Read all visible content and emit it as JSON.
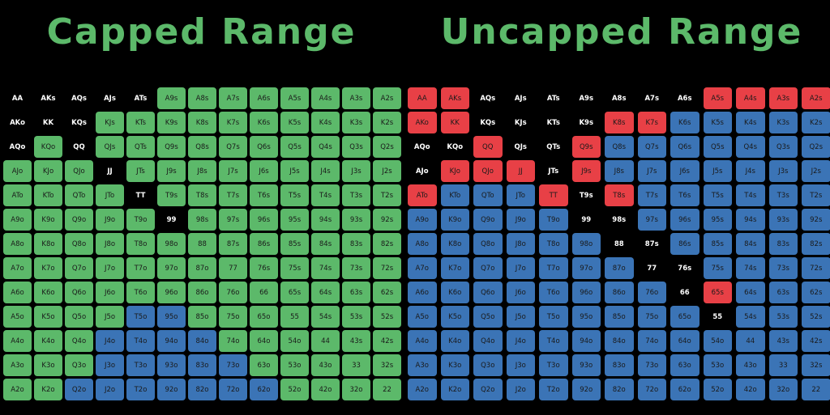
{
  "colors": {
    "background": "#000000",
    "title": "#5cb96a",
    "green": "#5cb96a",
    "blue": "#3b74b6",
    "red": "#e84046",
    "text_on_color": "#1a1a1a",
    "text_on_black": "#ffffff"
  },
  "left_panel": {
    "title": "Capped Range",
    "grid": [
      [
        "AA",
        "AKs",
        "AQs",
        "AJs",
        "ATs",
        "A9s",
        "A8s",
        "A7s",
        "A6s",
        "A5s",
        "A4s",
        "A3s",
        "A2s"
      ],
      [
        "AKo",
        "KK",
        "KQs",
        "KJs",
        "KTs",
        "K9s",
        "K8s",
        "K7s",
        "K6s",
        "K5s",
        "K4s",
        "K3s",
        "K2s"
      ],
      [
        "AQo",
        "KQo",
        "QQ",
        "QJs",
        "QTs",
        "Q9s",
        "Q8s",
        "Q7s",
        "Q6s",
        "Q5s",
        "Q4s",
        "Q3s",
        "Q2s"
      ],
      [
        "AJo",
        "KJo",
        "QJo",
        "JJ",
        "JTs",
        "J9s",
        "J8s",
        "J7s",
        "J6s",
        "J5s",
        "J4s",
        "J3s",
        "J2s"
      ],
      [
        "ATo",
        "KTo",
        "QTo",
        "JTo",
        "TT",
        "T9s",
        "T8s",
        "T7s",
        "T6s",
        "T5s",
        "T4s",
        "T3s",
        "T2s"
      ],
      [
        "A9o",
        "K9o",
        "Q9o",
        "J9o",
        "T9o",
        "99",
        "98s",
        "97s",
        "96s",
        "95s",
        "94s",
        "93s",
        "92s"
      ],
      [
        "A8o",
        "K8o",
        "Q8o",
        "J8o",
        "T8o",
        "98o",
        "88",
        "87s",
        "86s",
        "85s",
        "84s",
        "83s",
        "82s"
      ],
      [
        "A7o",
        "K7o",
        "Q7o",
        "J7o",
        "T7o",
        "97o",
        "87o",
        "77",
        "76s",
        "75s",
        "74s",
        "73s",
        "72s"
      ],
      [
        "A6o",
        "K6o",
        "Q6o",
        "J6o",
        "T6o",
        "96o",
        "86o",
        "76o",
        "66",
        "65s",
        "64s",
        "63s",
        "62s"
      ],
      [
        "A5o",
        "K5o",
        "Q5o",
        "J5o",
        "T5o",
        "95o",
        "85o",
        "75o",
        "65o",
        "55",
        "54s",
        "53s",
        "52s"
      ],
      [
        "A4o",
        "K4o",
        "Q4o",
        "J4o",
        "T4o",
        "94o",
        "84o",
        "74o",
        "64o",
        "54o",
        "44",
        "43s",
        "42s"
      ],
      [
        "A3o",
        "K3o",
        "Q3o",
        "J3o",
        "T3o",
        "93o",
        "83o",
        "73o",
        "63o",
        "53o",
        "43o",
        "33",
        "32s"
      ],
      [
        "A2o",
        "K2o",
        "Q2o",
        "J2o",
        "T2o",
        "92o",
        "82o",
        "72o",
        "62o",
        "52o",
        "42o",
        "32o",
        "22"
      ]
    ],
    "colors": [
      [
        "n",
        "n",
        "n",
        "n",
        "n",
        "g",
        "g",
        "g",
        "g",
        "g",
        "g",
        "g",
        "g"
      ],
      [
        "n",
        "n",
        "n",
        "g",
        "g",
        "g",
        "g",
        "g",
        "g",
        "g",
        "g",
        "g",
        "g"
      ],
      [
        "n",
        "g",
        "n",
        "g",
        "g",
        "g",
        "g",
        "g",
        "g",
        "g",
        "g",
        "g",
        "g"
      ],
      [
        "g",
        "g",
        "g",
        "n",
        "g",
        "g",
        "g",
        "g",
        "g",
        "g",
        "g",
        "g",
        "g"
      ],
      [
        "g",
        "g",
        "g",
        "g",
        "n",
        "g",
        "g",
        "g",
        "g",
        "g",
        "g",
        "g",
        "g"
      ],
      [
        "g",
        "g",
        "g",
        "g",
        "g",
        "n",
        "g",
        "g",
        "g",
        "g",
        "g",
        "g",
        "g"
      ],
      [
        "g",
        "g",
        "g",
        "g",
        "g",
        "g",
        "g",
        "g",
        "g",
        "g",
        "g",
        "g",
        "g"
      ],
      [
        "g",
        "g",
        "g",
        "g",
        "g",
        "g",
        "g",
        "g",
        "g",
        "g",
        "g",
        "g",
        "g"
      ],
      [
        "g",
        "g",
        "g",
        "g",
        "g",
        "g",
        "g",
        "g",
        "g",
        "g",
        "g",
        "g",
        "g"
      ],
      [
        "g",
        "g",
        "g",
        "g",
        "b",
        "b",
        "g",
        "g",
        "g",
        "g",
        "g",
        "g",
        "g"
      ],
      [
        "g",
        "g",
        "g",
        "b",
        "b",
        "b",
        "b",
        "g",
        "g",
        "g",
        "g",
        "g",
        "g"
      ],
      [
        "g",
        "g",
        "g",
        "b",
        "b",
        "b",
        "b",
        "b",
        "g",
        "g",
        "g",
        "g",
        "g"
      ],
      [
        "g",
        "g",
        "b",
        "b",
        "b",
        "b",
        "b",
        "b",
        "b",
        "g",
        "g",
        "g",
        "g"
      ]
    ]
  },
  "right_panel": {
    "title": "Uncapped Range",
    "grid": [
      [
        "AA",
        "AKs",
        "AQs",
        "AJs",
        "ATs",
        "A9s",
        "A8s",
        "A7s",
        "A6s",
        "A5s",
        "A4s",
        "A3s",
        "A2s"
      ],
      [
        "AKo",
        "KK",
        "KQs",
        "KJs",
        "KTs",
        "K9s",
        "K8s",
        "K7s",
        "K6s",
        "K5s",
        "K4s",
        "K3s",
        "K2s"
      ],
      [
        "AQo",
        "KQo",
        "QQ",
        "QJs",
        "QTs",
        "Q9s",
        "Q8s",
        "Q7s",
        "Q6s",
        "Q5s",
        "Q4s",
        "Q3s",
        "Q2s"
      ],
      [
        "AJo",
        "KJo",
        "QJo",
        "JJ",
        "JTs",
        "J9s",
        "J8s",
        "J7s",
        "J6s",
        "J5s",
        "J4s",
        "J3s",
        "J2s"
      ],
      [
        "ATo",
        "KTo",
        "QTo",
        "JTo",
        "TT",
        "T9s",
        "T8s",
        "T7s",
        "T6s",
        "T5s",
        "T4s",
        "T3s",
        "T2s"
      ],
      [
        "A9o",
        "K9o",
        "Q9o",
        "J9o",
        "T9o",
        "99",
        "98s",
        "97s",
        "96s",
        "95s",
        "94s",
        "93s",
        "92s"
      ],
      [
        "A8o",
        "K8o",
        "Q8o",
        "J8o",
        "T8o",
        "98o",
        "88",
        "87s",
        "86s",
        "85s",
        "84s",
        "83s",
        "82s"
      ],
      [
        "A7o",
        "K7o",
        "Q7o",
        "J7o",
        "T7o",
        "97o",
        "87o",
        "77",
        "76s",
        "75s",
        "74s",
        "73s",
        "72s"
      ],
      [
        "A6o",
        "K6o",
        "Q6o",
        "J6o",
        "T6o",
        "96o",
        "86o",
        "76o",
        "66",
        "65s",
        "64s",
        "63s",
        "62s"
      ],
      [
        "A5o",
        "K5o",
        "Q5o",
        "J5o",
        "T5o",
        "95o",
        "85o",
        "75o",
        "65o",
        "55",
        "54s",
        "53s",
        "52s"
      ],
      [
        "A4o",
        "K4o",
        "Q4o",
        "J4o",
        "T4o",
        "94o",
        "84o",
        "74o",
        "64o",
        "54o",
        "44",
        "43s",
        "42s"
      ],
      [
        "A3o",
        "K3o",
        "Q3o",
        "J3o",
        "T3o",
        "93o",
        "83o",
        "73o",
        "63o",
        "53o",
        "43o",
        "33",
        "32s"
      ],
      [
        "A2o",
        "K2o",
        "Q2o",
        "J2o",
        "T2o",
        "92o",
        "82o",
        "72o",
        "62o",
        "52o",
        "42o",
        "32o",
        "22"
      ]
    ],
    "colors": [
      [
        "r",
        "r",
        "n",
        "n",
        "n",
        "n",
        "n",
        "n",
        "n",
        "r",
        "r",
        "r",
        "r"
      ],
      [
        "r",
        "r",
        "n",
        "n",
        "n",
        "n",
        "r",
        "r",
        "b",
        "b",
        "b",
        "b",
        "b"
      ],
      [
        "n",
        "n",
        "r",
        "n",
        "n",
        "r",
        "b",
        "b",
        "b",
        "b",
        "b",
        "b",
        "b"
      ],
      [
        "n",
        "r",
        "r",
        "r",
        "n",
        "r",
        "b",
        "b",
        "b",
        "b",
        "b",
        "b",
        "b"
      ],
      [
        "r",
        "b",
        "b",
        "b",
        "r",
        "n",
        "r",
        "b",
        "b",
        "b",
        "b",
        "b",
        "b"
      ],
      [
        "b",
        "b",
        "b",
        "b",
        "b",
        "n",
        "n",
        "b",
        "b",
        "b",
        "b",
        "b",
        "b"
      ],
      [
        "b",
        "b",
        "b",
        "b",
        "b",
        "b",
        "n",
        "n",
        "b",
        "b",
        "b",
        "b",
        "b"
      ],
      [
        "b",
        "b",
        "b",
        "b",
        "b",
        "b",
        "b",
        "n",
        "n",
        "b",
        "b",
        "b",
        "b"
      ],
      [
        "b",
        "b",
        "b",
        "b",
        "b",
        "b",
        "b",
        "b",
        "n",
        "r",
        "b",
        "b",
        "b"
      ],
      [
        "b",
        "b",
        "b",
        "b",
        "b",
        "b",
        "b",
        "b",
        "b",
        "n",
        "b",
        "b",
        "b"
      ],
      [
        "b",
        "b",
        "b",
        "b",
        "b",
        "b",
        "b",
        "b",
        "b",
        "b",
        "b",
        "b",
        "b"
      ],
      [
        "b",
        "b",
        "b",
        "b",
        "b",
        "b",
        "b",
        "b",
        "b",
        "b",
        "b",
        "b",
        "b"
      ],
      [
        "b",
        "b",
        "b",
        "b",
        "b",
        "b",
        "b",
        "b",
        "b",
        "b",
        "b",
        "b",
        "b"
      ]
    ]
  }
}
